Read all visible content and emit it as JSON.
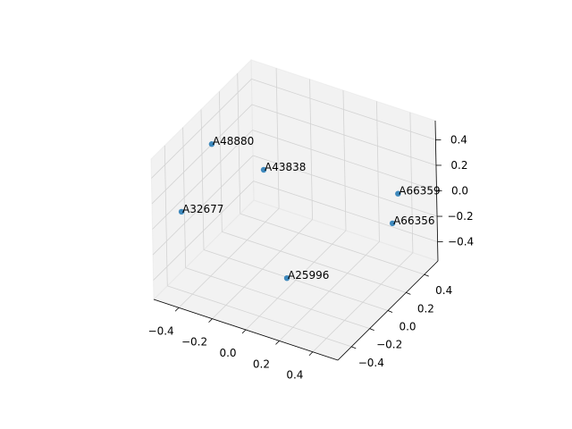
{
  "chart_data": {
    "type": "scatter3d",
    "labels": [
      "A48880",
      "A43838",
      "A32677",
      "A25996",
      "A66359",
      "A66356"
    ],
    "x": [
      -0.44,
      -0.32,
      -0.44,
      -0.02,
      0.39,
      0.37
    ],
    "y": [
      -0.09,
      0.25,
      -0.43,
      -0.06,
      0.42,
      0.39
    ],
    "z": [
      0.39,
      0.0,
      0.1,
      -0.5,
      0.0,
      -0.22
    ],
    "color": "#1f77b4",
    "xlim": [
      -0.55,
      0.55
    ],
    "ylim": [
      -0.55,
      0.55
    ],
    "zlim": [
      -0.55,
      0.55
    ],
    "xticks": [
      {
        "value": -0.4,
        "label": "−0.4"
      },
      {
        "value": -0.2,
        "label": "−0.2"
      },
      {
        "value": 0,
        "label": "0.0"
      },
      0.2,
      0.4
    ],
    "yticks": [
      {
        "value": -0.4,
        "label": "−0.4"
      },
      {
        "value": -0.2,
        "label": "−0.2"
      },
      {
        "value": 0,
        "label": "0.0"
      },
      0.2,
      0.4
    ],
    "zticks": [
      {
        "value": -0.4,
        "label": "−0.4"
      },
      {
        "value": -0.2,
        "label": "−0.2"
      },
      {
        "value": 0,
        "label": "0.0"
      },
      0.2,
      0.4
    ],
    "grid": true
  }
}
